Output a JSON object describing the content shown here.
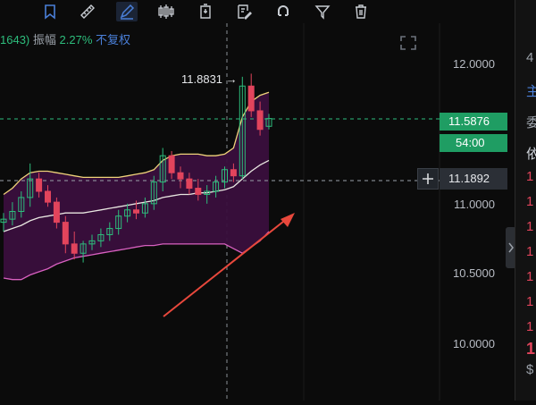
{
  "colors": {
    "up": "#2dbd7c",
    "down": "#e2445c",
    "band_fill": "#3a0f3d",
    "upper_band": "#f0d37a",
    "middle_band": "#e8e6e0",
    "lower_band": "#d860c0",
    "annotation_arrow": "#e8483c",
    "accent_blue": "#4a7fd8"
  },
  "toolbar": {
    "tools": [
      {
        "name": "bookmark-icon",
        "active": false
      },
      {
        "name": "ruler-icon",
        "active": false
      },
      {
        "name": "pen-draw-icon",
        "active": true
      },
      {
        "name": "candlestick-icon",
        "active": false
      },
      {
        "name": "battery-icon",
        "active": false
      },
      {
        "name": "edit-note-icon",
        "active": false
      },
      {
        "name": "magnet-icon",
        "active": false
      },
      {
        "name": "filter-icon",
        "active": false
      },
      {
        "name": "trash-icon",
        "active": false
      }
    ]
  },
  "infobar": {
    "change_value": "1643)",
    "amplitude_label": "振幅",
    "amplitude_value": "2.27%",
    "adjust_label": "不复权"
  },
  "chart": {
    "y_axis_ticks": [
      "12.0000",
      "11.0000",
      "10.5000",
      "10.0000"
    ],
    "high_marker": "11.8831 →",
    "last_price": "11.5876",
    "countdown": "54:00",
    "crosshair_price": "11.1892"
  },
  "chart_data": {
    "type": "candlestick",
    "ylim": [
      9.78,
      12.2
    ],
    "candles": [
      {
        "o": 10.92,
        "h": 10.98,
        "l": 10.86,
        "c": 10.94
      },
      {
        "o": 10.94,
        "h": 11.05,
        "l": 10.9,
        "c": 10.99
      },
      {
        "o": 10.99,
        "h": 11.12,
        "l": 10.95,
        "c": 11.08
      },
      {
        "o": 11.08,
        "h": 11.3,
        "l": 11.02,
        "c": 11.2
      },
      {
        "o": 11.2,
        "h": 11.24,
        "l": 11.08,
        "c": 11.12
      },
      {
        "o": 11.12,
        "h": 11.16,
        "l": 11.02,
        "c": 11.05
      },
      {
        "o": 11.05,
        "h": 11.08,
        "l": 10.88,
        "c": 10.92
      },
      {
        "o": 10.92,
        "h": 10.96,
        "l": 10.72,
        "c": 10.78
      },
      {
        "o": 10.78,
        "h": 10.86,
        "l": 10.68,
        "c": 10.72
      },
      {
        "o": 10.72,
        "h": 10.8,
        "l": 10.66,
        "c": 10.78
      },
      {
        "o": 10.78,
        "h": 10.84,
        "l": 10.74,
        "c": 10.8
      },
      {
        "o": 10.8,
        "h": 10.88,
        "l": 10.76,
        "c": 10.84
      },
      {
        "o": 10.84,
        "h": 10.92,
        "l": 10.8,
        "c": 10.88
      },
      {
        "o": 10.88,
        "h": 11.0,
        "l": 10.84,
        "c": 10.96
      },
      {
        "o": 10.96,
        "h": 11.04,
        "l": 10.92,
        "c": 11.0
      },
      {
        "o": 11.0,
        "h": 11.06,
        "l": 10.94,
        "c": 10.98
      },
      {
        "o": 10.98,
        "h": 11.08,
        "l": 10.95,
        "c": 11.04
      },
      {
        "o": 11.04,
        "h": 11.22,
        "l": 11.0,
        "c": 11.18
      },
      {
        "o": 11.18,
        "h": 11.4,
        "l": 11.12,
        "c": 11.35
      },
      {
        "o": 11.35,
        "h": 11.38,
        "l": 11.2,
        "c": 11.24
      },
      {
        "o": 11.24,
        "h": 11.28,
        "l": 11.14,
        "c": 11.2
      },
      {
        "o": 11.2,
        "h": 11.24,
        "l": 11.1,
        "c": 11.14
      },
      {
        "o": 11.14,
        "h": 11.2,
        "l": 11.06,
        "c": 11.1
      },
      {
        "o": 11.1,
        "h": 11.16,
        "l": 11.04,
        "c": 11.12
      },
      {
        "o": 11.12,
        "h": 11.22,
        "l": 11.08,
        "c": 11.18
      },
      {
        "o": 11.18,
        "h": 11.28,
        "l": 11.14,
        "c": 11.26
      },
      {
        "o": 11.26,
        "h": 11.3,
        "l": 11.18,
        "c": 11.22
      },
      {
        "o": 11.22,
        "h": 11.86,
        "l": 11.2,
        "c": 11.8
      },
      {
        "o": 11.8,
        "h": 11.88,
        "l": 11.6,
        "c": 11.64
      },
      {
        "o": 11.64,
        "h": 11.7,
        "l": 11.48,
        "c": 11.52
      },
      {
        "o": 11.54,
        "h": 11.62,
        "l": 11.52,
        "c": 11.59
      }
    ],
    "upper_band": [
      11.1,
      11.14,
      11.2,
      11.24,
      11.25,
      11.25,
      11.24,
      11.23,
      11.22,
      11.21,
      11.21,
      11.21,
      11.21,
      11.21,
      11.22,
      11.23,
      11.24,
      11.26,
      11.32,
      11.35,
      11.36,
      11.36,
      11.36,
      11.35,
      11.35,
      11.36,
      11.4,
      11.6,
      11.7,
      11.74,
      11.76
    ],
    "middle_band": [
      10.86,
      10.88,
      10.9,
      10.93,
      10.95,
      10.96,
      10.97,
      10.98,
      10.98,
      10.98,
      10.99,
      11.0,
      11.01,
      11.02,
      11.03,
      11.04,
      11.05,
      11.06,
      11.08,
      11.09,
      11.1,
      11.1,
      11.11,
      11.11,
      11.12,
      11.13,
      11.15,
      11.2,
      11.25,
      11.29,
      11.32
    ],
    "lower_band": [
      10.56,
      10.55,
      10.55,
      10.58,
      10.6,
      10.62,
      10.65,
      10.67,
      10.69,
      10.7,
      10.71,
      10.72,
      10.73,
      10.74,
      10.75,
      10.76,
      10.77,
      10.77,
      10.78,
      10.78,
      10.78,
      10.78,
      10.78,
      10.78,
      10.78,
      10.78,
      10.75,
      10.72,
      10.76,
      10.8,
      10.86
    ],
    "reference_lines": [
      11.5876,
      11.1892
    ],
    "high_marker": 11.8831
  },
  "right_panel": {
    "rows": [
      {
        "text": "4",
        "color": "#9aa0a8"
      },
      {
        "text": "主",
        "color": "#4a7fd8"
      },
      {
        "text": "委",
        "color": "#9aa0a8"
      },
      {
        "text": "依",
        "color": "#cfd3da"
      },
      {
        "text": "1",
        "color": "#e2445c"
      },
      {
        "text": "1",
        "color": "#e2445c"
      },
      {
        "text": "1",
        "color": "#e2445c"
      },
      {
        "text": "1",
        "color": "#e2445c"
      },
      {
        "text": "1",
        "color": "#e2445c"
      },
      {
        "text": "1",
        "color": "#e2445c"
      },
      {
        "text": "1",
        "color": "#e2445c"
      },
      {
        "text": "1",
        "color": "#e2445c"
      },
      {
        "text": "$",
        "color": "#9aa0a8"
      }
    ]
  }
}
